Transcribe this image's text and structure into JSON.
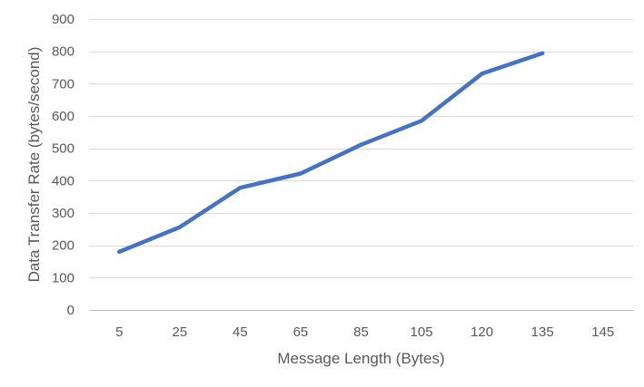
{
  "chart_data": {
    "type": "line",
    "title": "",
    "xlabel": "Message Length (Bytes)",
    "ylabel": "Data Transfer Rate (bytes/second)",
    "categories": [
      "5",
      "25",
      "45",
      "65",
      "85",
      "105",
      "120",
      "135",
      "145"
    ],
    "series": [
      {
        "color": "#4472c4",
        "values": [
          180,
          256,
          378,
          422,
          511,
          585,
          731,
          794,
          null
        ]
      }
    ],
    "ylim": [
      0,
      900
    ],
    "yticks": [
      "0",
      "100",
      "200",
      "300",
      "400",
      "500",
      "600",
      "700",
      "800",
      "900"
    ],
    "grid": true,
    "legend": "none"
  }
}
